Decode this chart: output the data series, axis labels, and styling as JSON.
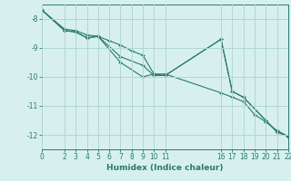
{
  "background_color": "#d7f0ee",
  "grid_color": "#b0d8d4",
  "line_color": "#2a7a6f",
  "xlabel": "Humidex (Indice chaleur)",
  "xlim": [
    0,
    22
  ],
  "ylim": [
    -12.5,
    -7.5
  ],
  "xticks": [
    0,
    2,
    3,
    4,
    5,
    6,
    7,
    8,
    9,
    10,
    11,
    16,
    17,
    18,
    19,
    20,
    21,
    22
  ],
  "yticks": [
    -8,
    -9,
    -10,
    -11,
    -12
  ],
  "line1": {
    "x": [
      0,
      2,
      3,
      4,
      5,
      7,
      9,
      10,
      11,
      16,
      17,
      18,
      20,
      21,
      22
    ],
    "y": [
      -7.7,
      -8.4,
      -8.45,
      -8.65,
      -8.6,
      -9.5,
      -10.0,
      -9.9,
      -9.95,
      -8.7,
      -10.5,
      -10.7,
      -11.5,
      -11.9,
      -12.05
    ]
  },
  "line2": {
    "x": [
      0,
      2,
      3,
      4,
      5,
      7,
      9,
      10,
      11,
      16,
      17,
      18,
      20,
      21,
      22
    ],
    "y": [
      -7.7,
      -8.4,
      -8.45,
      -8.65,
      -8.6,
      -9.3,
      -9.6,
      -9.95,
      -9.95,
      -8.7,
      -10.5,
      -10.7,
      -11.5,
      -11.9,
      -12.05
    ]
  },
  "line3": {
    "x": [
      0,
      2,
      3,
      4,
      5,
      6,
      7,
      8,
      9,
      10,
      11,
      16,
      17,
      18,
      19,
      20,
      21,
      22
    ],
    "y": [
      -7.7,
      -8.35,
      -8.4,
      -8.55,
      -8.6,
      -8.75,
      -8.9,
      -9.1,
      -9.25,
      -9.9,
      -9.9,
      -10.55,
      -10.7,
      -10.85,
      -11.3,
      -11.55,
      -11.85,
      -12.05
    ]
  }
}
